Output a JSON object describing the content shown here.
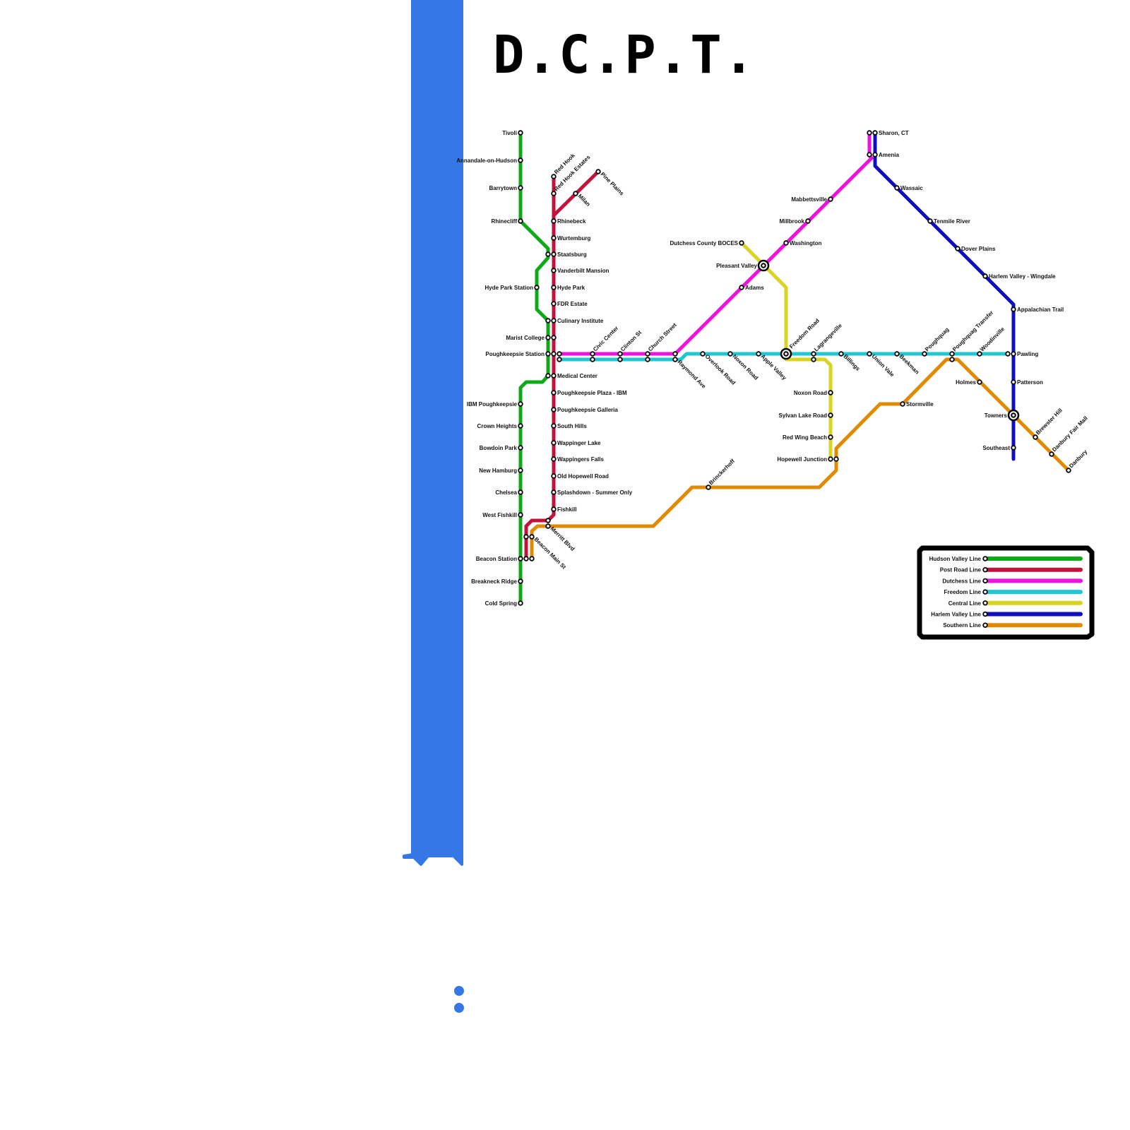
{
  "title": "D.C.P.T.",
  "colors": {
    "river": "#3578e5",
    "station_fill": "#ffffff",
    "station_stroke": "#000000"
  },
  "lines": [
    {
      "name": "Hudson Valley Line",
      "color": "#0fa918"
    },
    {
      "name": "Post Road Line",
      "color": "#c0143c"
    },
    {
      "name": "Dutchess Line",
      "color": "#ee11e0"
    },
    {
      "name": "Freedom Line",
      "color": "#22c6d3"
    },
    {
      "name": "Central Line",
      "color": "#d9d321"
    },
    {
      "name": "Harlem Valley Line",
      "color": "#0f0fbf"
    },
    {
      "name": "Southern Line",
      "color": "#e08a00"
    }
  ],
  "stations": [
    "Tivoli",
    "Annandale-on-Hudson",
    "Barrytown",
    "Rhinecliff",
    "Red Hook",
    "Red Hook Estates",
    "Milan",
    "Pine Plains",
    "Rhinebeck",
    "Wurtemburg",
    "Staatsburg",
    "Vanderbilt Mansion",
    "Hyde Park Station",
    "Hyde Park",
    "FDR Estate",
    "Culinary Institute",
    "Marist College",
    "Poughkeepsie Station",
    "Medical Center",
    "IBM Poughkeepsie",
    "Crown Heights",
    "Bowdoin Park",
    "New Hamburg",
    "Chelsea",
    "West Fishkill",
    "Poughkeepsie Plaza - IBM",
    "Poughkeepsie Galleria",
    "South Hills",
    "Wappinger Lake",
    "Wappingers Falls",
    "Old Hopewell Road",
    "Splashdown - Summer Only",
    "Fishkill",
    "Merritt Blvd",
    "Beacon Main St",
    "Beacon Station",
    "Breakneck Ridge",
    "Cold Spring",
    "Civic Center",
    "Clinton St",
    "Church Street",
    "Raymond Ave",
    "Overlook Road",
    "Noxon Road",
    "Apple Valley",
    "Freedom Road",
    "Lagrangeville",
    "Billings",
    "Union Vale",
    "Beekman",
    "Poughquag",
    "Poughquag Transfer",
    "Woodinville",
    "Pawling",
    "Adams",
    "Pleasant Valley",
    "Dutchess County BOCES",
    "Washington",
    "Millbrook",
    "Mabbettsville",
    "Amenia",
    "Sharon, CT",
    "Wassaic",
    "Tenmile River",
    "Dover Plains",
    "Harlem Valley - Wingdale",
    "Appalachian Trail",
    "Patterson",
    "Towners",
    "Southeast",
    "Holmes",
    "Stormville",
    "Brinckerhoff",
    "Noxon Road",
    "Sylvan Lake Road",
    "Red Wing Beach",
    "Hopewell Junction",
    "Brewster Hill",
    "Danbury Fair Mall",
    "Danbury"
  ]
}
